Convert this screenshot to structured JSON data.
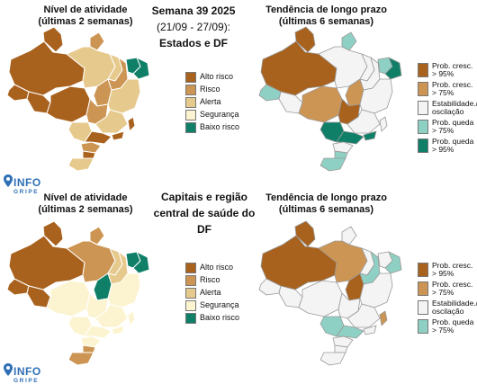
{
  "colors": {
    "alto_risco": "#a8621e",
    "risco": "#cd9553",
    "alerta": "#e6c98c",
    "seguranca": "#fcf4d0",
    "baixo_risco": "#0f7f68",
    "prob_cresc_95": "#a8621e",
    "prob_cresc_75": "#cd9553",
    "estabilidade": "#f4f4f4",
    "prob_queda_75": "#8fd0c4",
    "prob_queda_95": "#0f7f68",
    "logo_blue": "#2f6fb5"
  },
  "header": {
    "line1": "Semana 39 2025",
    "line2": "(21/09 - 27/09):",
    "line3": "Estados e DF"
  },
  "mid_header": {
    "line1": "Capitais e região",
    "line2": "central de saúde do DF"
  },
  "panels": {
    "top_left_title": [
      "Nível de atividade",
      "(últimas 2 semanas)"
    ],
    "top_right_title": [
      "Tendência de longo prazo",
      "(últimas 6 semanas)"
    ],
    "bottom_left_title": [
      "Nível de atividade",
      "(últimas 2 semanas)"
    ],
    "bottom_right_title": [
      "Tendência de longo prazo",
      "(últimas 6 semanas)"
    ]
  },
  "legend_activity": [
    {
      "label": "Alto risco",
      "color": "#a8621e"
    },
    {
      "label": "Risco",
      "color": "#cd9553"
    },
    {
      "label": "Alerta",
      "color": "#e6c98c"
    },
    {
      "label": "Segurança",
      "color": "#fcf4d0"
    },
    {
      "label": "Baixo risco",
      "color": "#0f7f68"
    }
  ],
  "legend_trend_top": [
    {
      "line1": "Prob. cresc.",
      "line2": "> 95%",
      "color": "#a8621e"
    },
    {
      "line1": "Prob. cresc.",
      "line2": "> 75%",
      "color": "#cd9553"
    },
    {
      "line1": "Estabilidade./",
      "line2": "oscilação",
      "color": "#f4f4f4"
    },
    {
      "line1": "Prob. queda",
      "line2": "> 75%",
      "color": "#8fd0c4"
    },
    {
      "line1": "Prob. queda",
      "line2": "> 95%",
      "color": "#0f7f68"
    }
  ],
  "legend_trend_bottom": [
    {
      "line1": "Prob. cresc.",
      "line2": "> 95%",
      "color": "#a8621e"
    },
    {
      "line1": "Prob. cresc.",
      "line2": "> 75%",
      "color": "#cd9553"
    },
    {
      "line1": "Estabilidade./",
      "line2": "oscilação",
      "color": "#f4f4f4"
    },
    {
      "line1": "Prob. queda",
      "line2": "> 75%",
      "color": "#8fd0c4"
    }
  ],
  "logo": {
    "word": "INFO",
    "sub": "GRIPE"
  }
}
